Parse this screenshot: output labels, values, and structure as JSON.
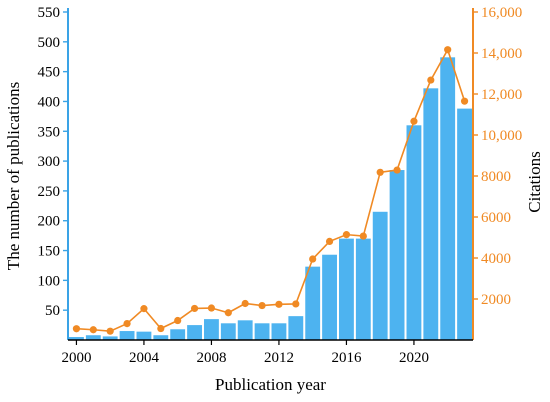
{
  "chart_data": {
    "type": "bar",
    "title": "",
    "xlabel": "Publication year",
    "ylabel": "The number of publications",
    "y2label": "Citations",
    "colors": {
      "bars": "#4db3f0",
      "line": "#f08a24",
      "left_axis": "#3aa3e6",
      "right_axis": "#f08a24"
    },
    "x": [
      2000,
      2001,
      2002,
      2003,
      2004,
      2005,
      2006,
      2007,
      2008,
      2009,
      2010,
      2011,
      2012,
      2013,
      2014,
      2015,
      2016,
      2017,
      2018,
      2019,
      2020,
      2021,
      2022,
      2023
    ],
    "x_ticks": [
      "2000",
      "2004",
      "2008",
      "2012",
      "2016",
      "2020"
    ],
    "series": [
      {
        "kind": "bar",
        "axis": "left",
        "values": [
          5,
          8,
          6,
          15,
          14,
          8,
          18,
          25,
          35,
          28,
          33,
          28,
          28,
          40,
          123,
          143,
          170,
          170,
          215,
          285,
          360,
          422,
          474,
          388
        ]
      },
      {
        "kind": "line",
        "axis": "right",
        "values": [
          550,
          500,
          430,
          800,
          1530,
          560,
          950,
          1540,
          1560,
          1330,
          1780,
          1680,
          1740,
          1760,
          3950,
          4810,
          5140,
          5070,
          8180,
          8290,
          10670,
          12680,
          14160,
          11650
        ]
      }
    ],
    "ylim": [
      0,
      550
    ],
    "y_ticks": [
      "50",
      "100",
      "150",
      "200",
      "250",
      "300",
      "350",
      "400",
      "450",
      "500",
      "550"
    ],
    "y2lim": [
      0,
      16000
    ],
    "y2_ticks": [
      "2000",
      "4000",
      "6000",
      "8000",
      "10,000",
      "12,000",
      "14,000",
      "16,000"
    ]
  }
}
